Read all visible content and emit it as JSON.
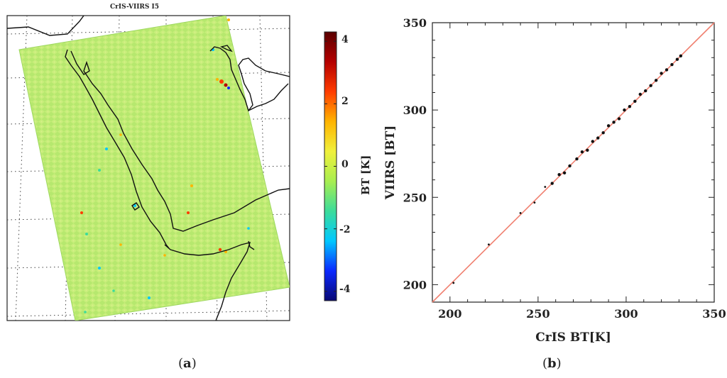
{
  "panels": {
    "a": {
      "caption": "a",
      "map_title": "CrIS-VIIRS I5",
      "colorbar_label": "BT [K]",
      "colorbar_ticks": [
        "4",
        "2",
        "0",
        "-2",
        "-4"
      ],
      "colorbar_range": [
        -4.3,
        4.3
      ],
      "colormap": [
        "#080873",
        "#0a28ff",
        "#00c8ff",
        "#3cdc9a",
        "#a8ee50",
        "#f0f03c",
        "#ffb400",
        "#ff3c00",
        "#b40000",
        "#5a0000"
      ]
    },
    "b": {
      "caption": "b"
    }
  },
  "chart_data": [
    {
      "type": "heatmap",
      "title": "CrIS-VIIRS I5",
      "colorbar_label": "BT [K]",
      "colorbar_ticks": [
        4,
        2,
        0,
        -2,
        -4
      ],
      "value_range": [
        -4.3,
        4.3
      ],
      "dominant_value": 0
    },
    {
      "type": "scatter",
      "xlabel": "CrIS BT[K]",
      "ylabel": "VIIRS [BT]",
      "xlim": [
        190,
        350
      ],
      "ylim": [
        190,
        350
      ],
      "xticks": [
        200,
        250,
        300,
        350
      ],
      "yticks": [
        200,
        250,
        300,
        350
      ],
      "reference_line": {
        "from": [
          190,
          190
        ],
        "to": [
          350,
          350
        ],
        "color": "#f08070"
      },
      "series": [
        {
          "color": "#111111",
          "points": [
            [
              202,
              201
            ],
            [
              222,
              223
            ],
            [
              240,
              241
            ],
            [
              248,
              247
            ],
            [
              254,
              256
            ],
            [
              258,
              258
            ],
            [
              262,
              263
            ],
            [
              265,
              264
            ],
            [
              268,
              268
            ],
            [
              272,
              272
            ],
            [
              275,
              276
            ],
            [
              278,
              277
            ],
            [
              281,
              282
            ],
            [
              284,
              284
            ],
            [
              287,
              287
            ],
            [
              290,
              291
            ],
            [
              293,
              293
            ],
            [
              296,
              295
            ],
            [
              299,
              300
            ],
            [
              302,
              302
            ],
            [
              305,
              305
            ],
            [
              308,
              309
            ],
            [
              311,
              311
            ],
            [
              314,
              314
            ],
            [
              317,
              317
            ],
            [
              320,
              321
            ],
            [
              323,
              323
            ],
            [
              326,
              326
            ],
            [
              329,
              329
            ],
            [
              331,
              331
            ]
          ]
        }
      ]
    }
  ]
}
